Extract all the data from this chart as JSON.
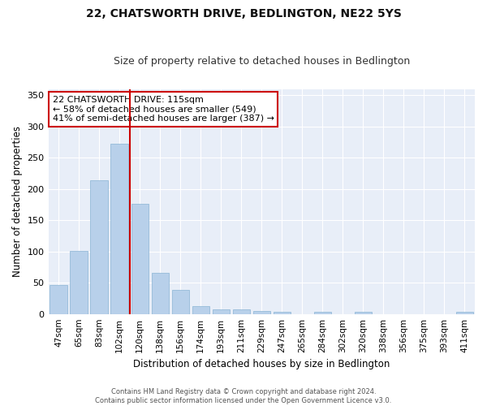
{
  "title": "22, CHATSWORTH DRIVE, BEDLINGTON, NE22 5YS",
  "subtitle": "Size of property relative to detached houses in Bedlington",
  "xlabel": "Distribution of detached houses by size in Bedlington",
  "ylabel": "Number of detached properties",
  "categories": [
    "47sqm",
    "65sqm",
    "83sqm",
    "102sqm",
    "120sqm",
    "138sqm",
    "156sqm",
    "174sqm",
    "193sqm",
    "211sqm",
    "229sqm",
    "247sqm",
    "265sqm",
    "284sqm",
    "302sqm",
    "320sqm",
    "338sqm",
    "356sqm",
    "375sqm",
    "393sqm",
    "411sqm"
  ],
  "values": [
    47,
    101,
    214,
    272,
    176,
    66,
    39,
    13,
    7,
    7,
    5,
    3,
    0,
    3,
    0,
    3,
    0,
    0,
    0,
    0,
    3
  ],
  "bar_color": "#b8d0ea",
  "bar_edge_color": "#8ab4d4",
  "highlight_line_color": "#cc0000",
  "annotation_line1": "22 CHATSWORTH DRIVE: 115sqm",
  "annotation_line2": "← 58% of detached houses are smaller (549)",
  "annotation_line3": "41% of semi-detached houses are larger (387) →",
  "annotation_box_color": "#ffffff",
  "annotation_box_edge_color": "#cc0000",
  "ylim": [
    0,
    360
  ],
  "yticks": [
    0,
    50,
    100,
    150,
    200,
    250,
    300,
    350
  ],
  "background_color": "#e8eef8",
  "grid_color": "#ffffff",
  "figure_bg": "#ffffff",
  "footer_line1": "Contains HM Land Registry data © Crown copyright and database right 2024.",
  "footer_line2": "Contains public sector information licensed under the Open Government Licence v3.0."
}
